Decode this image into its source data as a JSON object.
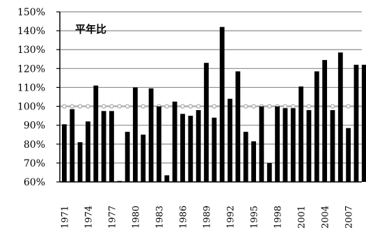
{
  "chart_data": {
    "type": "bar",
    "title": "平年比",
    "xlabel": "",
    "ylabel": "",
    "ylim": [
      60,
      150
    ],
    "y_ticks": [
      "60%",
      "70%",
      "80%",
      "90%",
      "100%",
      "110%",
      "120%",
      "130%",
      "140%",
      "150%"
    ],
    "x_tick_labels": [
      "1971",
      "1974",
      "1977",
      "1980",
      "1983",
      "1986",
      "1989",
      "1992",
      "1995",
      "1998",
      "2001",
      "2004",
      "2007"
    ],
    "categories": [
      "1971",
      "1972",
      "1973",
      "1974",
      "1975",
      "1976",
      "1977",
      "1978",
      "1979",
      "1980",
      "1981",
      "1982",
      "1983",
      "1984",
      "1985",
      "1986",
      "1987",
      "1988",
      "1989",
      "1990",
      "1991",
      "1992",
      "1993",
      "1994",
      "1995",
      "1996",
      "1997",
      "1998",
      "1999",
      "2000",
      "2001",
      "2002",
      "2003",
      "2004",
      "2005",
      "2006",
      "2007",
      "2008",
      "2009"
    ],
    "values": [
      90.5,
      98.5,
      81,
      92,
      111,
      97.5,
      97.5,
      60.5,
      86.5,
      110,
      85,
      109.5,
      100,
      63.5,
      102.5,
      96,
      95,
      98,
      123,
      94,
      142,
      104,
      118.5,
      86.5,
      81.5,
      100,
      70,
      100,
      99,
      99,
      110.5,
      98,
      118.5,
      124.5,
      98,
      128.5,
      88.5,
      122,
      122
    ],
    "reference_line": 100,
    "grid": true,
    "colors": {
      "bar": "#000000",
      "grid": "#8c8c8c",
      "reference": "#b0b0b0"
    }
  }
}
